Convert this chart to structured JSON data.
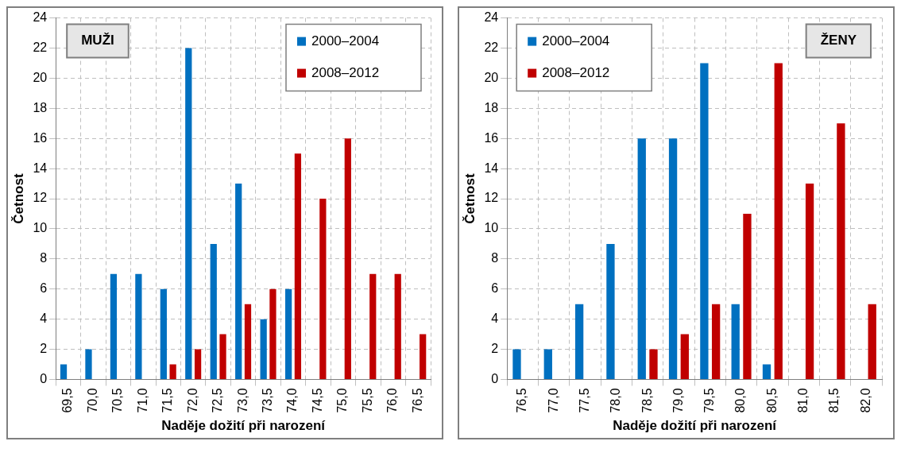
{
  "chart_data": [
    {
      "type": "bar",
      "categories": [
        "69,5",
        "70,0",
        "70,5",
        "71,0",
        "71,5",
        "72,0",
        "72,5",
        "73,0",
        "73,5",
        "74,0",
        "74,5",
        "75,0",
        "75,5",
        "76,0",
        "76,5"
      ],
      "xlabel": "Naděje dožití při narození",
      "ylabel": "Četnost",
      "annotations": [
        "MUŽI"
      ],
      "series": [
        {
          "name": "2000–2004",
          "color": "#0070c0",
          "values": [
            1,
            2,
            7,
            7,
            6,
            22,
            9,
            13,
            4,
            6,
            0,
            0,
            0,
            0,
            0
          ]
        },
        {
          "name": "2008–2012",
          "color": "#c00000",
          "values": [
            0,
            0,
            0,
            0,
            1,
            2,
            3,
            5,
            6,
            15,
            12,
            16,
            7,
            7,
            3
          ]
        }
      ],
      "ylim": [
        0,
        24
      ],
      "yticks": [
        0,
        2,
        4,
        6,
        8,
        10,
        12,
        14,
        16,
        18,
        20,
        22,
        24
      ],
      "grid": true,
      "legend": "top right"
    },
    {
      "type": "bar",
      "categories": [
        "76,5",
        "77,0",
        "77,5",
        "78,0",
        "78,5",
        "79,0",
        "79,5",
        "80,0",
        "80,5",
        "81,0",
        "81,5",
        "82,0"
      ],
      "xlabel": "Naděje dožití při narození",
      "ylabel": "Četnost",
      "annotations": [
        "ŽENY"
      ],
      "series": [
        {
          "name": "2000–2004",
          "color": "#0070c0",
          "values": [
            2,
            2,
            5,
            9,
            16,
            16,
            21,
            5,
            1,
            0,
            0,
            0
          ]
        },
        {
          "name": "2008–2012",
          "color": "#c00000",
          "values": [
            0,
            0,
            0,
            0,
            2,
            3,
            5,
            11,
            21,
            13,
            17,
            5
          ]
        }
      ],
      "ylim": [
        0,
        24
      ],
      "yticks": [
        0,
        2,
        4,
        6,
        8,
        10,
        12,
        14,
        16,
        18,
        20,
        22,
        24
      ],
      "grid": true,
      "legend": "top left"
    }
  ]
}
